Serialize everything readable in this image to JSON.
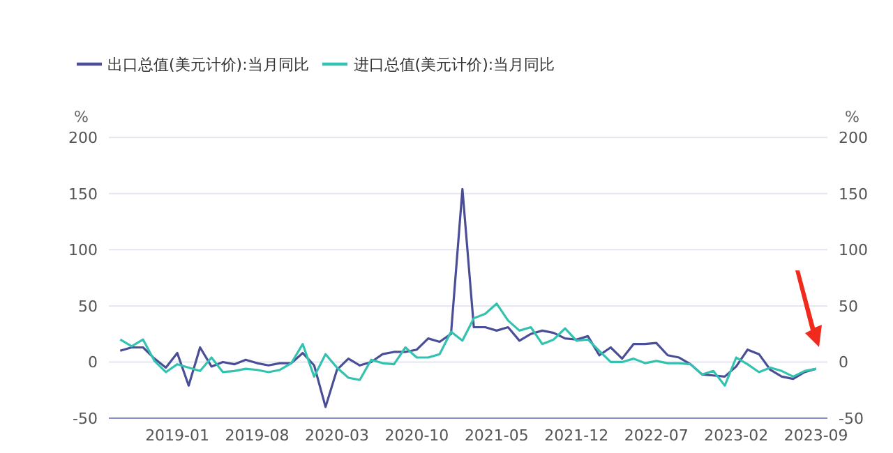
{
  "chart_data": {
    "type": "line",
    "ylabel": "%",
    "y2label": "%",
    "x": [
      "2018-08",
      "2018-09",
      "2018-10",
      "2018-11",
      "2018-12",
      "2019-01",
      "2019-02",
      "2019-03",
      "2019-04",
      "2019-05",
      "2019-06",
      "2019-07",
      "2019-08",
      "2019-09",
      "2019-10",
      "2019-11",
      "2019-12",
      "2020-01",
      "2020-02",
      "2020-03",
      "2020-04",
      "2020-05",
      "2020-06",
      "2020-07",
      "2020-08",
      "2020-09",
      "2020-10",
      "2020-11",
      "2020-12",
      "2021-01",
      "2021-02",
      "2021-03",
      "2021-04",
      "2021-05",
      "2021-06",
      "2021-07",
      "2021-08",
      "2021-09",
      "2021-10",
      "2021-11",
      "2021-12",
      "2022-01",
      "2022-02",
      "2022-03",
      "2022-04",
      "2022-05",
      "2022-06",
      "2022-07",
      "2022-08",
      "2022-09",
      "2022-10",
      "2022-11",
      "2022-12",
      "2023-01",
      "2023-02",
      "2023-03",
      "2023-04",
      "2023-05",
      "2023-06",
      "2023-07",
      "2023-08",
      "2023-09"
    ],
    "series": [
      {
        "name": "出口总值(美元计价):当月同比",
        "color": "#4a4e96",
        "values": [
          10,
          13,
          13,
          3,
          -5,
          8,
          -21,
          13,
          -4,
          0,
          -2,
          2,
          -1,
          -3,
          -1,
          -1,
          8,
          -3,
          -40,
          -7,
          3,
          -3,
          0,
          7,
          9,
          9,
          11,
          21,
          18,
          25,
          154,
          31,
          31,
          28,
          31,
          19,
          25,
          28,
          26,
          21,
          20,
          23,
          6,
          13,
          3,
          16,
          16,
          17,
          6,
          4,
          -2,
          -11,
          -12,
          -13,
          -4,
          11,
          7,
          -7,
          -13,
          -15,
          -9,
          -6
        ]
      },
      {
        "name": "进口总值(美元计价):当月同比",
        "color": "#33c2b0",
        "values": [
          20,
          14,
          20,
          1,
          -9,
          -2,
          -5,
          -8,
          4,
          -9,
          -8,
          -6,
          -7,
          -9,
          -7,
          -1,
          16,
          -13,
          7,
          -5,
          -14,
          -16,
          2,
          -1,
          -2,
          13,
          4,
          4,
          7,
          27,
          19,
          39,
          43,
          52,
          37,
          28,
          31,
          16,
          20,
          30,
          19,
          20,
          10,
          0,
          0,
          3,
          -1,
          1,
          -1,
          -1,
          -2,
          -11,
          -8,
          -21,
          4,
          -2,
          -9,
          -5,
          -8,
          -13,
          -8,
          -6
        ]
      }
    ],
    "xlim": [
      "2018-07",
      "2023-10"
    ],
    "xticks": [
      "2019-01",
      "2019-08",
      "2020-03",
      "2020-10",
      "2021-05",
      "2021-12",
      "2022-07",
      "2023-02",
      "2023-09"
    ],
    "ylim": [
      -50,
      200
    ],
    "yticks": [
      -50,
      0,
      50,
      100,
      150,
      200
    ],
    "y2lim": [
      -50,
      200
    ],
    "y2ticks": [
      -50,
      0,
      50,
      100,
      150,
      200
    ],
    "grid": "y",
    "legend": "top left",
    "marker": "none",
    "line_style": "solid"
  }
}
